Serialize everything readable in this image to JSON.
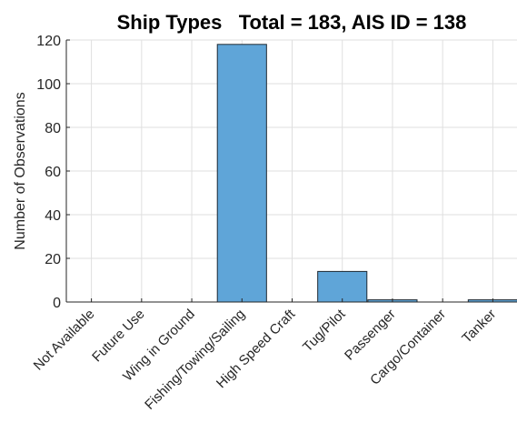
{
  "chart_data": {
    "type": "bar",
    "title": "Ship Types   Total = 183, AIS ID = 138",
    "xlabel": "",
    "ylabel": "Number of Observations",
    "categories": [
      "Not Available",
      "Future Use",
      "Wing in Ground",
      "Fishing/Towing/Sailing",
      "High Speed Craft",
      "Tug/Pilot",
      "Passenger",
      "Cargo/Container",
      "Tanker"
    ],
    "values": [
      0,
      0,
      0,
      118,
      0,
      14,
      1,
      0,
      1
    ],
    "ylim": [
      0,
      120
    ],
    "yticks": [
      0,
      20,
      40,
      60,
      80,
      100,
      120
    ],
    "grid": true,
    "bar_color": "#5fa5d8",
    "bar_edge_color": "#1f2a33"
  }
}
